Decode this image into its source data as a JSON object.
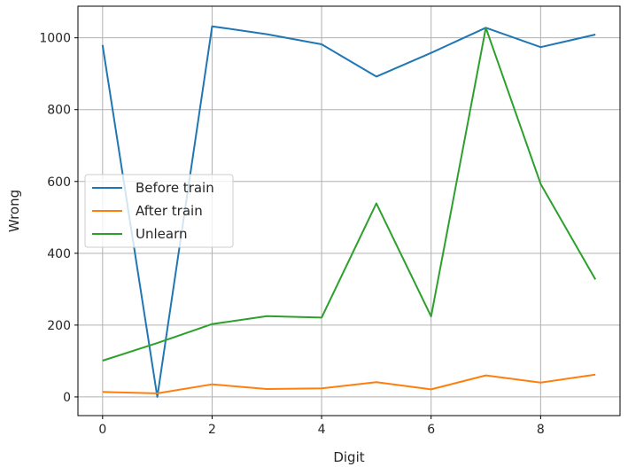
{
  "chart_data": {
    "type": "line",
    "title": "",
    "xlabel": "Digit",
    "ylabel": "Wrong",
    "x": [
      0,
      1,
      2,
      3,
      4,
      5,
      6,
      7,
      8,
      9
    ],
    "xlim": [
      -0.45,
      9.45
    ],
    "ylim": [
      -52,
      1088
    ],
    "xticks": [
      0,
      2,
      4,
      6,
      8
    ],
    "yticks": [
      0,
      200,
      400,
      600,
      800,
      1000
    ],
    "grid": true,
    "legend_position": "center-left",
    "series": [
      {
        "name": "Before train",
        "color": "#1f77b4",
        "values": [
          980,
          0,
          1032,
          1010,
          982,
          892,
          958,
          1028,
          974,
          1009
        ]
      },
      {
        "name": "After train",
        "color": "#ff7f0e",
        "values": [
          14,
          10,
          35,
          22,
          24,
          41,
          21,
          60,
          40,
          62
        ]
      },
      {
        "name": "Unlearn",
        "color": "#2ca02c",
        "values": [
          101,
          150,
          203,
          225,
          221,
          539,
          224,
          1028,
          593,
          327
        ]
      }
    ]
  }
}
